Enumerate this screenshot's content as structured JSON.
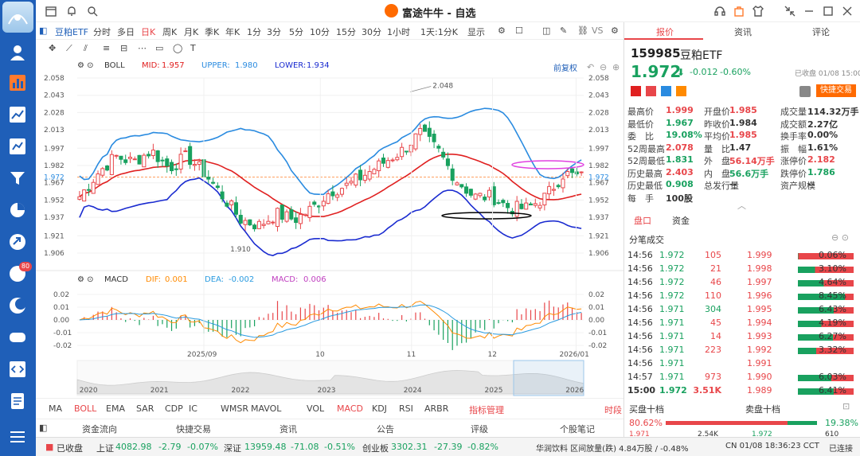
{
  "app": {
    "title": "富途牛牛 - 自选"
  },
  "toolbar": {
    "symbol_tab": "豆粕ETF",
    "timeframes": [
      "分时",
      "多日",
      "日K",
      "周K",
      "月K",
      "季K",
      "年K",
      "1分",
      "3分",
      "5分",
      "10分",
      "15分",
      "30分",
      "1小时",
      "1天:1分K",
      "显示"
    ],
    "active_timeframe": "日K",
    "vs": "VS"
  },
  "boll": {
    "name": "BOLL",
    "mid_label": "MID:",
    "mid": "1.957",
    "upper_label": "UPPER:",
    "upper": "1.980",
    "lower_label": "LOWER:",
    "lower": "1.934",
    "adjust": "前复权"
  },
  "macd": {
    "name": "MACD",
    "dif_label": "DIF:",
    "dif": "0.001",
    "dea_label": "DEA:",
    "dea": "-0.002",
    "macd_label": "MACD:",
    "macd": "0.006"
  },
  "chart_data": {
    "type": "candlestick",
    "price_ticks": [
      "2.058",
      "2.043",
      "2.028",
      "2.013",
      "1.997",
      "1.982",
      "1.972",
      "1.967",
      "1.952",
      "1.937",
      "1.921",
      "1.906"
    ],
    "macd_ticks": [
      "0.02",
      "0.01",
      "0.00",
      "-0.01",
      "-0.02"
    ],
    "x_labels": [
      "2025/09",
      "10",
      "11",
      "12",
      "2026/01"
    ],
    "overview_labels": [
      "2020",
      "2021",
      "2022",
      "2023",
      "2024",
      "2025",
      "2026"
    ],
    "annotations": {
      "high": "2.048",
      "low": "1.910"
    },
    "last_price": "1.972"
  },
  "indicators": [
    "MA",
    "BOLL",
    "EMA",
    "SAR",
    "CDP",
    "IC",
    "WMSR",
    "MAVOL",
    "VOL",
    "MACD",
    "KDJ",
    "RSI",
    "ARBR",
    "指标管理",
    "时段"
  ],
  "active_indicators": [
    "BOLL",
    "MACD"
  ],
  "bottom_tabs": [
    "资金流向",
    "快捷交易",
    "资讯",
    "公告",
    "评级",
    "个股笔记"
  ],
  "status": {
    "closed": "已收盘",
    "sh_name": "上证",
    "sh_val": "4082.98",
    "sh_chg": "-2.79",
    "sh_pct": "-0.07%",
    "sz_name": "深证",
    "sz_val": "13959.48",
    "sz_chg": "-71.08",
    "sz_pct": "-0.51%",
    "cy_name": "创业板",
    "cy_val": "3302.31",
    "cy_chg": "-27.39",
    "cy_pct": "-0.82%",
    "news": "华润饮料 区间放量(跌) 4.84万股 / -0.48%",
    "time": "CN 01/08 18:36:23 CCT",
    "conn": "已连接"
  },
  "right": {
    "tabs": [
      "报价",
      "资讯",
      "评论"
    ],
    "code": "159985",
    "name": "豆粕ETF",
    "price": "1.972",
    "arrow": "⬇",
    "chg": "-0.012",
    "pct": "-0.60%",
    "closed_at": "已收盘 01/08 15:00",
    "quick_trade": "快捷交易",
    "stats": [
      [
        "最高价",
        "1.999",
        "开盘价",
        "1.985",
        "成交量",
        "114.32万手"
      ],
      [
        "最低价",
        "1.967",
        "昨收价",
        "1.984",
        "成交额",
        "2.27亿"
      ],
      [
        "委　比",
        "19.08%",
        "平均价",
        "1.985",
        "换手率",
        "0.00%"
      ],
      [
        "52周最高",
        "2.078",
        "量　比",
        "1.47",
        "振　幅",
        "1.61%"
      ],
      [
        "52周最低",
        "1.831",
        "外　盘",
        "56.14万手",
        "涨停价",
        "2.182"
      ],
      [
        "历史最高",
        "2.403",
        "内　盘",
        "56.6万手",
        "跌停价",
        "1.786"
      ],
      [
        "历史最低",
        "0.908",
        "总发行量",
        "--",
        "资产规模",
        "--"
      ],
      [
        "每　手",
        "100股",
        "",
        "",
        "",
        ""
      ]
    ],
    "subtabs": [
      "盘口",
      "资金"
    ],
    "trades_title": "分笔成交",
    "trades": [
      [
        "14:56",
        "1.972",
        "105",
        "1.999",
        "0.06%"
      ],
      [
        "14:56",
        "1.972",
        "21",
        "1.998",
        "3.10%"
      ],
      [
        "14:56",
        "1.972",
        "46",
        "1.997",
        "4.64%"
      ],
      [
        "14:56",
        "1.972",
        "110",
        "1.996",
        "8.45%"
      ],
      [
        "14:56",
        "1.971",
        "304",
        "1.995",
        "6.43%"
      ],
      [
        "14:56",
        "1.971",
        "45",
        "1.994",
        "4.19%"
      ],
      [
        "14:56",
        "1.971",
        "14",
        "1.993",
        "6.27%"
      ],
      [
        "14:56",
        "1.971",
        "223",
        "1.992",
        "3.32%"
      ],
      [
        "14:56",
        "1.971",
        "",
        "1.991",
        ""
      ],
      [
        "14:57",
        "1.971",
        "973",
        "1.990",
        "6.03%"
      ],
      [
        "15:00",
        "1.972",
        "3.51K",
        "1.989",
        "6.41%"
      ]
    ],
    "buy_title": "买盘十档",
    "sell_title": "卖盘十档",
    "buy_pct": "80.62%",
    "sell_pct": "19.38%",
    "buy1": "1.971",
    "buy1_vol": "2.54K",
    "sell1": "1.972",
    "sell1_vol": "610"
  },
  "colors": {
    "up": "#e8464a",
    "down": "#19a15f",
    "accent": "#1f5fb8",
    "mid": "#e02020",
    "upper": "#2a8be0",
    "lower": "#1a2bd0"
  }
}
